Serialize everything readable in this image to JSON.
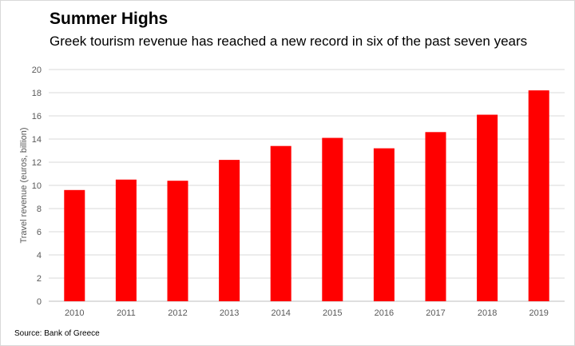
{
  "title": "Summer Highs",
  "subtitle": "Greek tourism revenue has reached a new record in six of the past seven years",
  "source": "Source: Bank of Greece",
  "colors": {
    "bar": "#ff0000",
    "grid": "#d9d9d9",
    "axis": "#bfbfbf"
  },
  "chart_data": {
    "type": "bar",
    "categories": [
      "2010",
      "2011",
      "2012",
      "2013",
      "2014",
      "2015",
      "2016",
      "2017",
      "2018",
      "2019"
    ],
    "values": [
      9.6,
      10.5,
      10.4,
      12.2,
      13.4,
      14.1,
      13.2,
      14.6,
      16.1,
      18.2
    ],
    "xlabel": "",
    "ylabel": "Travel revenue (euros, billion)",
    "ylim": [
      0,
      20
    ],
    "yticks": [
      0,
      2,
      4,
      6,
      8,
      10,
      12,
      14,
      16,
      18,
      20
    ],
    "grid": true,
    "legend": "none"
  }
}
